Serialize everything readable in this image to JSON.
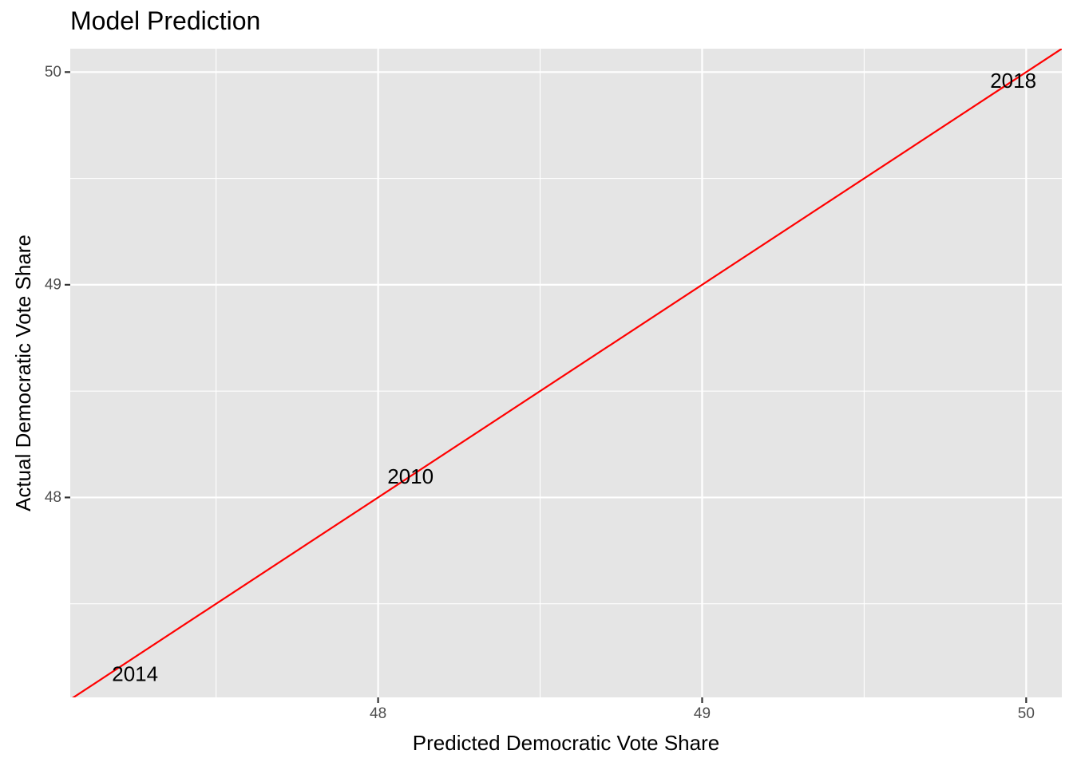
{
  "chart_data": {
    "type": "scatter",
    "title": "Model Prediction",
    "xlabel": "Predicted Democratic Vote Share",
    "ylabel": "Actual Democratic Vote Share",
    "xlim": [
      47.05,
      50.11
    ],
    "ylim": [
      47.06,
      50.11
    ],
    "x_ticks": [
      48,
      49,
      50
    ],
    "y_ticks": [
      48,
      49,
      50
    ],
    "x_minor": [
      47.5,
      48.5,
      49.5
    ],
    "y_minor": [
      47.5,
      48.5,
      49.5
    ],
    "points": [
      {
        "label": "2014",
        "x": 47.25,
        "y": 47.17
      },
      {
        "label": "2010",
        "x": 48.1,
        "y": 48.1
      },
      {
        "label": "2018",
        "x": 49.96,
        "y": 49.96
      }
    ],
    "reference_line": {
      "slope": 1,
      "intercept": 0,
      "color": "#ff0000"
    },
    "panel_background": "#e5e5e5",
    "grid_color": "#ffffff",
    "grid": true,
    "legend": "none"
  }
}
